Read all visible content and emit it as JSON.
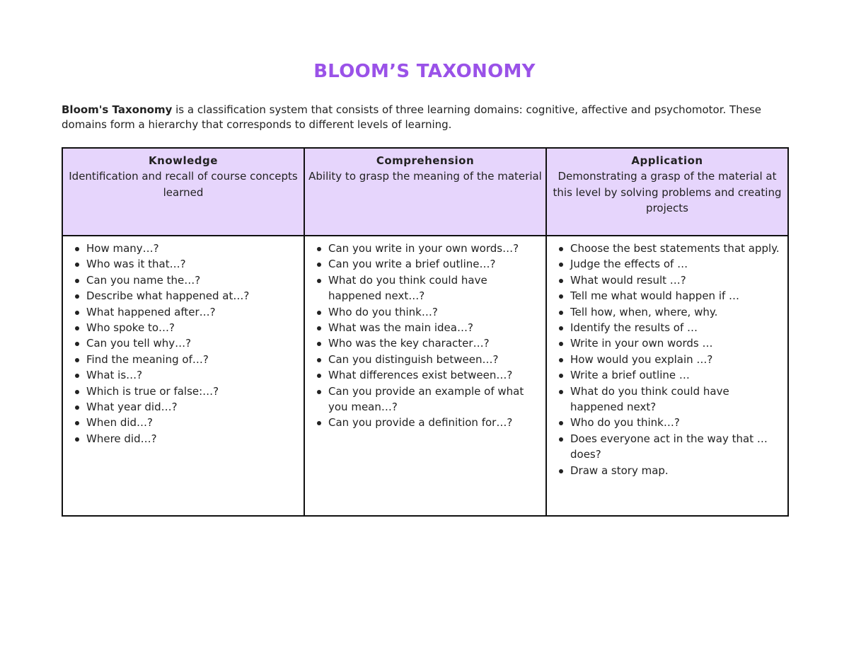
{
  "title": "BLOOM’S TAXONOMY",
  "intro": {
    "bold": "Bloom's Taxonomy",
    "text": " is a classification system that consists of three learning domains: cognitive, affective and psychomotor. These domains form a hierarchy that corresponds to different levels of learning."
  },
  "colors": {
    "title": "#9a52e8",
    "header_fill": "#e6d5fc"
  },
  "columns": [
    {
      "name": "Knowledge",
      "description": "Identification and recall of course concepts learned",
      "items": [
        "How many…?",
        "Who was it that…?",
        "Can you name the…?",
        "Describe what happened at…?",
        "What happened after…?",
        "Who spoke to…?",
        "Can you tell why…?",
        "Find the meaning of…?",
        "What is…?",
        "Which is true or false:…?",
        "What year did…?",
        "When did…?",
        "Where did…?"
      ]
    },
    {
      "name": "Comprehension",
      "description": "Ability to grasp the meaning of the material",
      "items": [
        "Can you write in your own words…?",
        "Can you write a brief outline…?",
        "What do you think could have happened next…?",
        "Who do you think…?",
        "What was the main idea…?",
        "Who was the key character…?",
        "Can you distinguish between…?",
        "What differences exist between…?",
        "Can you provide an example of what you mean…?",
        "Can you provide a definition for…?"
      ]
    },
    {
      "name": "Application",
      "description": "Demonstrating a  grasp of the material at this level by solving problems and creating projects",
      "items": [
        "Choose the best statements that apply.",
        "Judge the effects of …",
        "What would result …?",
        "Tell me what would happen if …",
        "Tell how, when, where, why.",
        "Identify the results of …",
        "Write in your own words …",
        "How would you explain …?",
        "Write a brief outline …",
        "What do you think could have happened next?",
        "Who do you think…?",
        "Does everyone act in the way that … does?",
        "Draw a story map."
      ]
    }
  ]
}
